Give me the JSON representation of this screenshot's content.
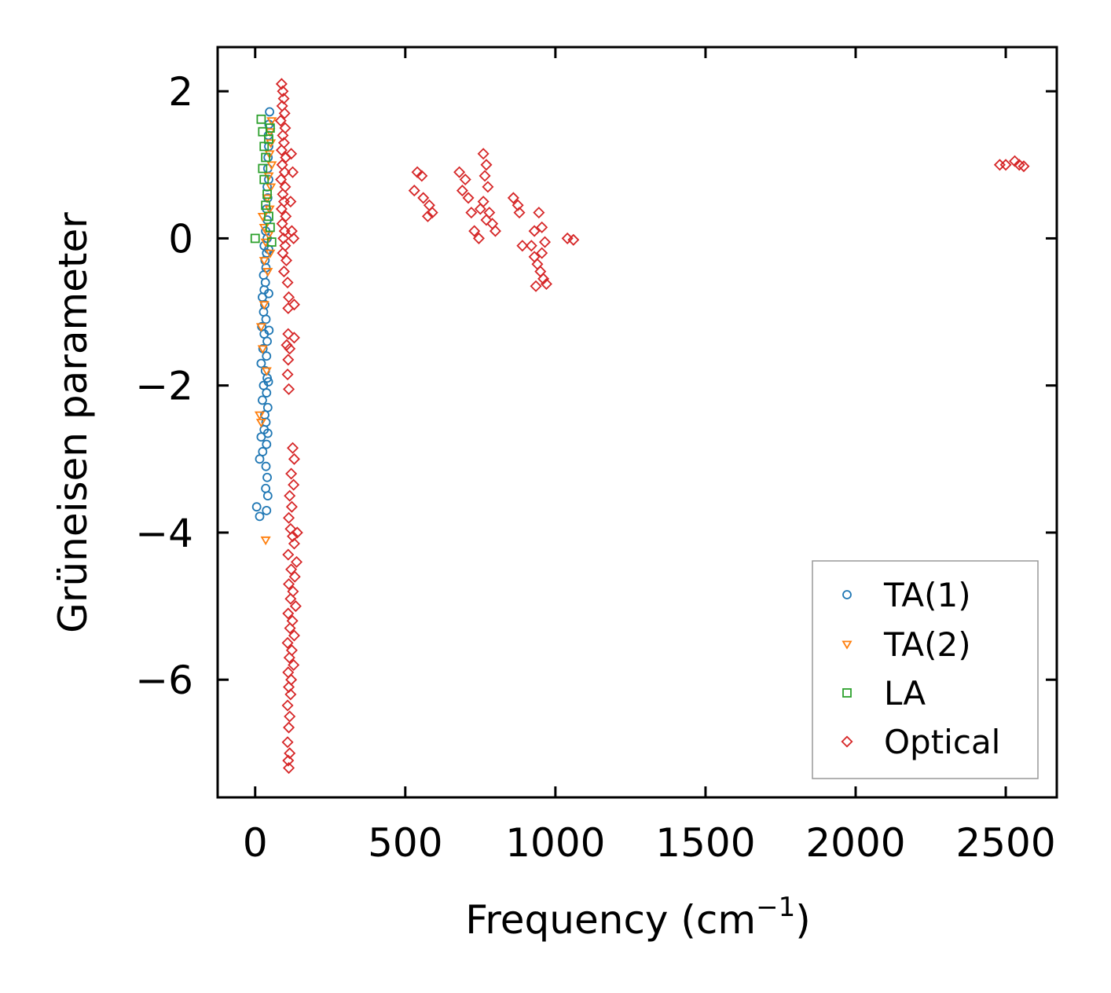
{
  "chart_data": {
    "type": "scatter",
    "title": "",
    "xlabel": "Frequency (cm",
    "xlabel_sup": "−1",
    "xlabel_close": ")",
    "ylabel": "Grüneisen parameter",
    "xlim": [
      -125,
      2670
    ],
    "ylim": [
      -7.6,
      2.6
    ],
    "xticks": [
      0,
      500,
      1000,
      1500,
      2000,
      2500
    ],
    "xtick_labels": [
      "0",
      "500",
      "1000",
      "1500",
      "2000",
      "2500"
    ],
    "yticks": [
      2,
      0,
      -2,
      -4,
      -6
    ],
    "ytick_labels": [
      "2",
      "0",
      "−2",
      "−4",
      "−6"
    ],
    "legend_position": "lower right",
    "series": [
      {
        "name": "TA(1)",
        "marker": "circle",
        "color": "#1f77b4",
        "points": [
          [
            48,
            1.72
          ],
          [
            46,
            1.55
          ],
          [
            44,
            1.4
          ],
          [
            45,
            1.25
          ],
          [
            43,
            1.1
          ],
          [
            42,
            0.95
          ],
          [
            45,
            0.8
          ],
          [
            40,
            0.7
          ],
          [
            42,
            0.55
          ],
          [
            38,
            0.4
          ],
          [
            40,
            0.25
          ],
          [
            35,
            0.1
          ],
          [
            40,
            0.0
          ],
          [
            30,
            -0.1
          ],
          [
            38,
            -0.2
          ],
          [
            33,
            -0.3
          ],
          [
            36,
            -0.4
          ],
          [
            28,
            -0.5
          ],
          [
            34,
            -0.6
          ],
          [
            30,
            -0.7
          ],
          [
            24,
            -0.8
          ],
          [
            32,
            -0.9
          ],
          [
            28,
            -1.0
          ],
          [
            36,
            -1.1
          ],
          [
            22,
            -1.2
          ],
          [
            30,
            -1.3
          ],
          [
            40,
            -1.4
          ],
          [
            26,
            -1.5
          ],
          [
            38,
            -1.6
          ],
          [
            20,
            -1.7
          ],
          [
            34,
            -1.8
          ],
          [
            40,
            -1.9
          ],
          [
            28,
            -2.0
          ],
          [
            38,
            -2.1
          ],
          [
            24,
            -2.2
          ],
          [
            42,
            -2.3
          ],
          [
            32,
            -2.4
          ],
          [
            36,
            -2.5
          ],
          [
            30,
            -2.6
          ],
          [
            20,
            -2.7
          ],
          [
            38,
            -2.8
          ],
          [
            25,
            -2.9
          ],
          [
            15,
            -3.0
          ],
          [
            36,
            -3.1
          ],
          [
            40,
            -3.25
          ],
          [
            35,
            -3.4
          ],
          [
            42,
            -3.5
          ],
          [
            5,
            -3.65
          ],
          [
            38,
            -3.7
          ],
          [
            15,
            -3.78
          ],
          [
            45,
            -0.15
          ],
          [
            45,
            -0.75
          ],
          [
            46,
            -1.25
          ],
          [
            44,
            -1.95
          ],
          [
            42,
            -2.65
          ]
        ]
      },
      {
        "name": "TA(2)",
        "marker": "triangle-down",
        "color": "#ff7f0e",
        "points": [
          [
            55,
            1.6
          ],
          [
            50,
            1.45
          ],
          [
            52,
            1.3
          ],
          [
            48,
            1.15
          ],
          [
            55,
            1.0
          ],
          [
            45,
            0.85
          ],
          [
            52,
            0.7
          ],
          [
            40,
            0.55
          ],
          [
            48,
            0.4
          ],
          [
            25,
            0.3
          ],
          [
            30,
            0.15
          ],
          [
            45,
            0.05
          ],
          [
            35,
            -0.05
          ],
          [
            50,
            -0.2
          ],
          [
            30,
            -0.3
          ],
          [
            42,
            -0.45
          ],
          [
            20,
            -1.2
          ],
          [
            25,
            -1.5
          ],
          [
            15,
            -2.4
          ],
          [
            20,
            -2.5
          ],
          [
            35,
            -4.1
          ],
          [
            30,
            -0.9
          ],
          [
            38,
            -1.8
          ]
        ]
      },
      {
        "name": "LA",
        "marker": "square",
        "color": "#2ca02c",
        "points": [
          [
            20,
            1.62
          ],
          [
            25,
            1.45
          ],
          [
            30,
            1.25
          ],
          [
            35,
            1.1
          ],
          [
            25,
            0.95
          ],
          [
            30,
            0.8
          ],
          [
            40,
            0.6
          ],
          [
            35,
            0.45
          ],
          [
            0,
            0.0
          ],
          [
            45,
            0.3
          ],
          [
            50,
            0.15
          ],
          [
            55,
            -0.05
          ],
          [
            50,
            1.5
          ],
          [
            45,
            1.35
          ]
        ]
      },
      {
        "name": "Optical",
        "marker": "diamond",
        "color": "#d62728",
        "points": [
          [
            88,
            2.1
          ],
          [
            92,
            2.0
          ],
          [
            95,
            1.9
          ],
          [
            90,
            1.8
          ],
          [
            98,
            1.7
          ],
          [
            85,
            1.6
          ],
          [
            100,
            1.5
          ],
          [
            92,
            1.4
          ],
          [
            96,
            1.3
          ],
          [
            88,
            1.2
          ],
          [
            102,
            1.1
          ],
          [
            90,
            1.0
          ],
          [
            98,
            0.9
          ],
          [
            86,
            0.8
          ],
          [
            100,
            0.7
          ],
          [
            92,
            0.6
          ],
          [
            96,
            0.5
          ],
          [
            88,
            0.4
          ],
          [
            102,
            0.3
          ],
          [
            90,
            0.2
          ],
          [
            98,
            0.1
          ],
          [
            94,
            0.0
          ],
          [
            100,
            -0.1
          ],
          [
            92,
            -0.2
          ],
          [
            104,
            -0.3
          ],
          [
            96,
            -0.45
          ],
          [
            108,
            -0.6
          ],
          [
            112,
            -0.8
          ],
          [
            110,
            -0.95
          ],
          [
            130,
            -0.9
          ],
          [
            120,
            1.15
          ],
          [
            125,
            0.9
          ],
          [
            118,
            0.5
          ],
          [
            122,
            0.1
          ],
          [
            128,
            0.0
          ],
          [
            110,
            -1.3
          ],
          [
            105,
            -1.45
          ],
          [
            115,
            -1.5
          ],
          [
            110,
            -1.65
          ],
          [
            108,
            -1.85
          ],
          [
            112,
            -2.05
          ],
          [
            130,
            -1.35
          ],
          [
            125,
            -2.85
          ],
          [
            130,
            -3.0
          ],
          [
            120,
            -3.2
          ],
          [
            128,
            -3.35
          ],
          [
            115,
            -3.5
          ],
          [
            122,
            -3.65
          ],
          [
            112,
            -3.8
          ],
          [
            118,
            -3.95
          ],
          [
            125,
            -4.05
          ],
          [
            140,
            -4.0
          ],
          [
            130,
            -4.15
          ],
          [
            110,
            -4.3
          ],
          [
            138,
            -4.4
          ],
          [
            120,
            -4.5
          ],
          [
            132,
            -4.6
          ],
          [
            112,
            -4.7
          ],
          [
            126,
            -4.8
          ],
          [
            118,
            -4.9
          ],
          [
            135,
            -5.0
          ],
          [
            110,
            -5.1
          ],
          [
            124,
            -5.2
          ],
          [
            116,
            -5.3
          ],
          [
            130,
            -5.4
          ],
          [
            108,
            -5.5
          ],
          [
            122,
            -5.6
          ],
          [
            114,
            -5.7
          ],
          [
            128,
            -5.8
          ],
          [
            110,
            -5.9
          ],
          [
            120,
            -6.0
          ],
          [
            112,
            -6.1
          ],
          [
            118,
            -6.2
          ],
          [
            108,
            -6.35
          ],
          [
            115,
            -6.5
          ],
          [
            112,
            -6.65
          ],
          [
            108,
            -6.85
          ],
          [
            115,
            -7.0
          ],
          [
            110,
            -7.1
          ],
          [
            112,
            -7.2
          ],
          [
            540,
            0.9
          ],
          [
            555,
            0.85
          ],
          [
            530,
            0.65
          ],
          [
            560,
            0.55
          ],
          [
            580,
            0.45
          ],
          [
            575,
            0.3
          ],
          [
            590,
            0.35
          ],
          [
            680,
            0.9
          ],
          [
            700,
            0.8
          ],
          [
            690,
            0.65
          ],
          [
            710,
            0.55
          ],
          [
            720,
            0.35
          ],
          [
            730,
            0.1
          ],
          [
            745,
            0.0
          ],
          [
            760,
            1.15
          ],
          [
            770,
            1.0
          ],
          [
            765,
            0.85
          ],
          [
            775,
            0.7
          ],
          [
            760,
            0.5
          ],
          [
            780,
            0.35
          ],
          [
            790,
            0.2
          ],
          [
            800,
            0.1
          ],
          [
            770,
            0.25
          ],
          [
            750,
            0.4
          ],
          [
            860,
            0.55
          ],
          [
            875,
            0.45
          ],
          [
            880,
            0.35
          ],
          [
            890,
            -0.1
          ],
          [
            930,
            0.1
          ],
          [
            945,
            0.35
          ],
          [
            955,
            0.15
          ],
          [
            920,
            -0.1
          ],
          [
            930,
            -0.25
          ],
          [
            940,
            -0.35
          ],
          [
            950,
            -0.45
          ],
          [
            960,
            -0.55
          ],
          [
            970,
            -0.62
          ],
          [
            935,
            -0.65
          ],
          [
            955,
            -0.2
          ],
          [
            965,
            -0.05
          ],
          [
            1040,
            0.0
          ],
          [
            1060,
            -0.02
          ],
          [
            2480,
            1.0
          ],
          [
            2500,
            1.0
          ],
          [
            2530,
            1.05
          ],
          [
            2545,
            1.0
          ],
          [
            2560,
            0.98
          ]
        ]
      }
    ]
  }
}
